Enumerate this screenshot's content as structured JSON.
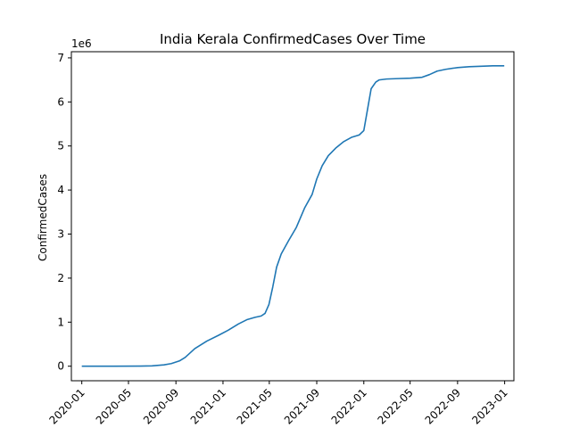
{
  "chart_data": {
    "type": "line",
    "title": "India Kerala ConfirmedCases Over Time",
    "xlabel": "",
    "ylabel": "ConfirmedCases",
    "y_offset_label": "1e6",
    "y_scale": 1000000,
    "xlim": [
      "2019-12-05",
      "2023-01-25"
    ],
    "ylim": [
      -330000,
      7140000
    ],
    "x_ticks": [
      "2020-01",
      "2020-05",
      "2020-09",
      "2021-01",
      "2021-05",
      "2021-09",
      "2022-01",
      "2022-05",
      "2022-09",
      "2023-01"
    ],
    "y_ticks": [
      0,
      1,
      2,
      3,
      4,
      5,
      6,
      7
    ],
    "grid": false,
    "line_color": "#1f77b4",
    "series": [
      {
        "x": [
          "2020-01-01",
          "2020-03-15",
          "2020-06-01",
          "2020-07-01",
          "2020-08-01",
          "2020-08-20",
          "2020-09-10",
          "2020-09-25",
          "2020-10-20",
          "2020-11-20",
          "2020-12-20",
          "2021-01-15",
          "2021-02-10",
          "2021-03-05",
          "2021-03-25",
          "2021-04-10",
          "2021-04-20",
          "2021-04-30",
          "2021-05-10",
          "2021-05-20",
          "2021-06-01",
          "2021-06-20",
          "2021-07-10",
          "2021-08-01",
          "2021-08-20",
          "2021-09-01",
          "2021-09-15",
          "2021-10-01",
          "2021-10-20",
          "2021-11-10",
          "2021-12-01",
          "2021-12-20",
          "2022-01-01",
          "2022-01-10",
          "2022-01-20",
          "2022-02-01",
          "2022-02-10",
          "2022-03-01",
          "2022-04-01",
          "2022-05-01",
          "2022-06-01",
          "2022-06-20",
          "2022-07-10",
          "2022-08-01",
          "2022-09-01",
          "2022-10-01",
          "2022-11-01",
          "2022-12-01",
          "2022-12-31"
        ],
        "values": [
          0,
          0,
          2000,
          8000,
          30000,
          60000,
          120000,
          200000,
          400000,
          570000,
          700000,
          820000,
          960000,
          1060000,
          1110000,
          1140000,
          1200000,
          1400000,
          1800000,
          2250000,
          2550000,
          2850000,
          3150000,
          3600000,
          3900000,
          4250000,
          4550000,
          4780000,
          4950000,
          5100000,
          5200000,
          5250000,
          5350000,
          5800000,
          6300000,
          6450000,
          6500000,
          6520000,
          6530000,
          6540000,
          6560000,
          6620000,
          6700000,
          6740000,
          6780000,
          6800000,
          6810000,
          6820000,
          6820000
        ]
      }
    ]
  }
}
